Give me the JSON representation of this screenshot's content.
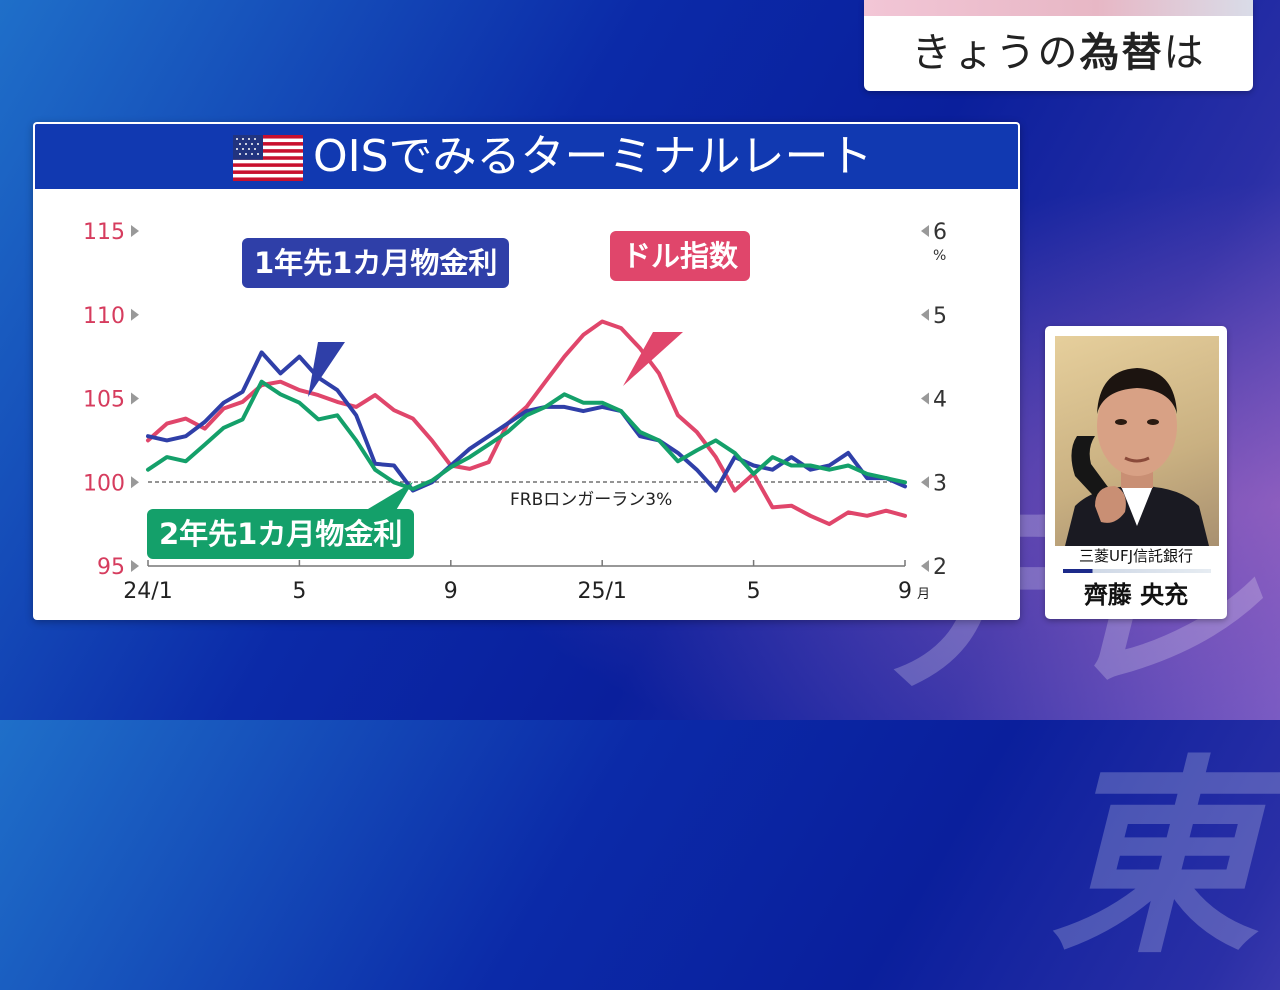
{
  "headline": {
    "text_plain": "きょうの",
    "text_bold": "為替",
    "text_tail": "は"
  },
  "panel": {
    "title": "OISでみるターミナルレート",
    "flag_icon": "us-flag-icon"
  },
  "person": {
    "company": "三菱UFJ信託銀行",
    "name": "齊藤 央充"
  },
  "watermark": "テレ東",
  "chart_data": {
    "type": "line",
    "title": "OISでみるターミナルレート",
    "x_ticks": [
      "24/1",
      "5",
      "9",
      "25/1",
      "5",
      "9"
    ],
    "x_unit": "月",
    "y_left": {
      "ticks": [
        "115",
        "110",
        "105",
        "100",
        "95"
      ],
      "range": [
        95,
        115
      ],
      "color": "#d63c5e"
    },
    "y_right": {
      "ticks": [
        "6",
        "5",
        "4",
        "3",
        "2"
      ],
      "unit": "%",
      "range": [
        2,
        6
      ],
      "color": "#333333"
    },
    "reference_line": {
      "label": "FRBロンガーラン3%",
      "value_right": 3
    },
    "x_range": [
      0,
      20
    ],
    "series": [
      {
        "name": "ドル指数",
        "axis": "left",
        "color": "#e0466b",
        "x": [
          0,
          0.5,
          1,
          1.5,
          2,
          2.5,
          3,
          3.5,
          4,
          4.5,
          5,
          5.5,
          6,
          6.5,
          7,
          7.5,
          8,
          8.5,
          9,
          9.5,
          10,
          10.5,
          11,
          11.5,
          12,
          12.5,
          13,
          13.5,
          14,
          14.5,
          15,
          15.5,
          16,
          16.5,
          17,
          17.5,
          18,
          18.5,
          19,
          19.5,
          20
        ],
        "values": [
          102.5,
          103.5,
          103.8,
          103.2,
          104.4,
          104.8,
          105.8,
          106.0,
          105.5,
          105.2,
          104.8,
          104.5,
          105.2,
          104.3,
          103.8,
          102.5,
          101.0,
          100.8,
          101.2,
          103.5,
          104.5,
          106.0,
          107.5,
          108.8,
          109.6,
          109.2,
          108.0,
          106.5,
          104.0,
          103.0,
          101.5,
          99.5,
          100.5,
          98.5,
          98.6,
          98.0,
          97.5,
          98.2,
          98.0,
          98.3,
          98.0
        ]
      },
      {
        "name": "1年先1カ月物金利",
        "axis": "right",
        "color": "#2f3fa8",
        "x": [
          0,
          0.5,
          1,
          1.5,
          2,
          2.5,
          3,
          3.5,
          4,
          4.5,
          5,
          5.5,
          6,
          6.5,
          7,
          7.5,
          8,
          8.5,
          9,
          9.5,
          10,
          10.5,
          11,
          11.5,
          12,
          12.5,
          13,
          13.5,
          14,
          14.5,
          15,
          15.5,
          16,
          16.5,
          17,
          17.5,
          18,
          18.5,
          19,
          19.5,
          20
        ],
        "values": [
          3.55,
          3.5,
          3.55,
          3.72,
          3.95,
          4.08,
          4.55,
          4.3,
          4.5,
          4.25,
          4.1,
          3.8,
          3.22,
          3.2,
          2.9,
          3.0,
          3.2,
          3.4,
          3.55,
          3.7,
          3.85,
          3.9,
          3.9,
          3.85,
          3.9,
          3.85,
          3.55,
          3.5,
          3.35,
          3.15,
          2.9,
          3.3,
          3.2,
          3.15,
          3.3,
          3.15,
          3.2,
          3.35,
          3.05,
          3.05,
          2.95
        ]
      },
      {
        "name": "2年先1カ月物金利",
        "axis": "right",
        "color": "#14a06a",
        "x": [
          0,
          0.5,
          1,
          1.5,
          2,
          2.5,
          3,
          3.5,
          4,
          4.5,
          5,
          5.5,
          6,
          6.5,
          7,
          7.5,
          8,
          8.5,
          9,
          9.5,
          10,
          10.5,
          11,
          11.5,
          12,
          12.5,
          13,
          13.5,
          14,
          14.5,
          15,
          15.5,
          16,
          16.5,
          17,
          17.5,
          18,
          18.5,
          19,
          19.5,
          20
        ],
        "values": [
          3.15,
          3.3,
          3.25,
          3.45,
          3.65,
          3.75,
          4.2,
          4.05,
          3.95,
          3.75,
          3.8,
          3.5,
          3.15,
          3.0,
          2.92,
          3.02,
          3.18,
          3.3,
          3.45,
          3.6,
          3.8,
          3.9,
          4.05,
          3.95,
          3.95,
          3.85,
          3.6,
          3.5,
          3.25,
          3.38,
          3.5,
          3.35,
          3.1,
          3.3,
          3.2,
          3.2,
          3.15,
          3.2,
          3.1,
          3.05,
          3.0
        ]
      }
    ]
  }
}
